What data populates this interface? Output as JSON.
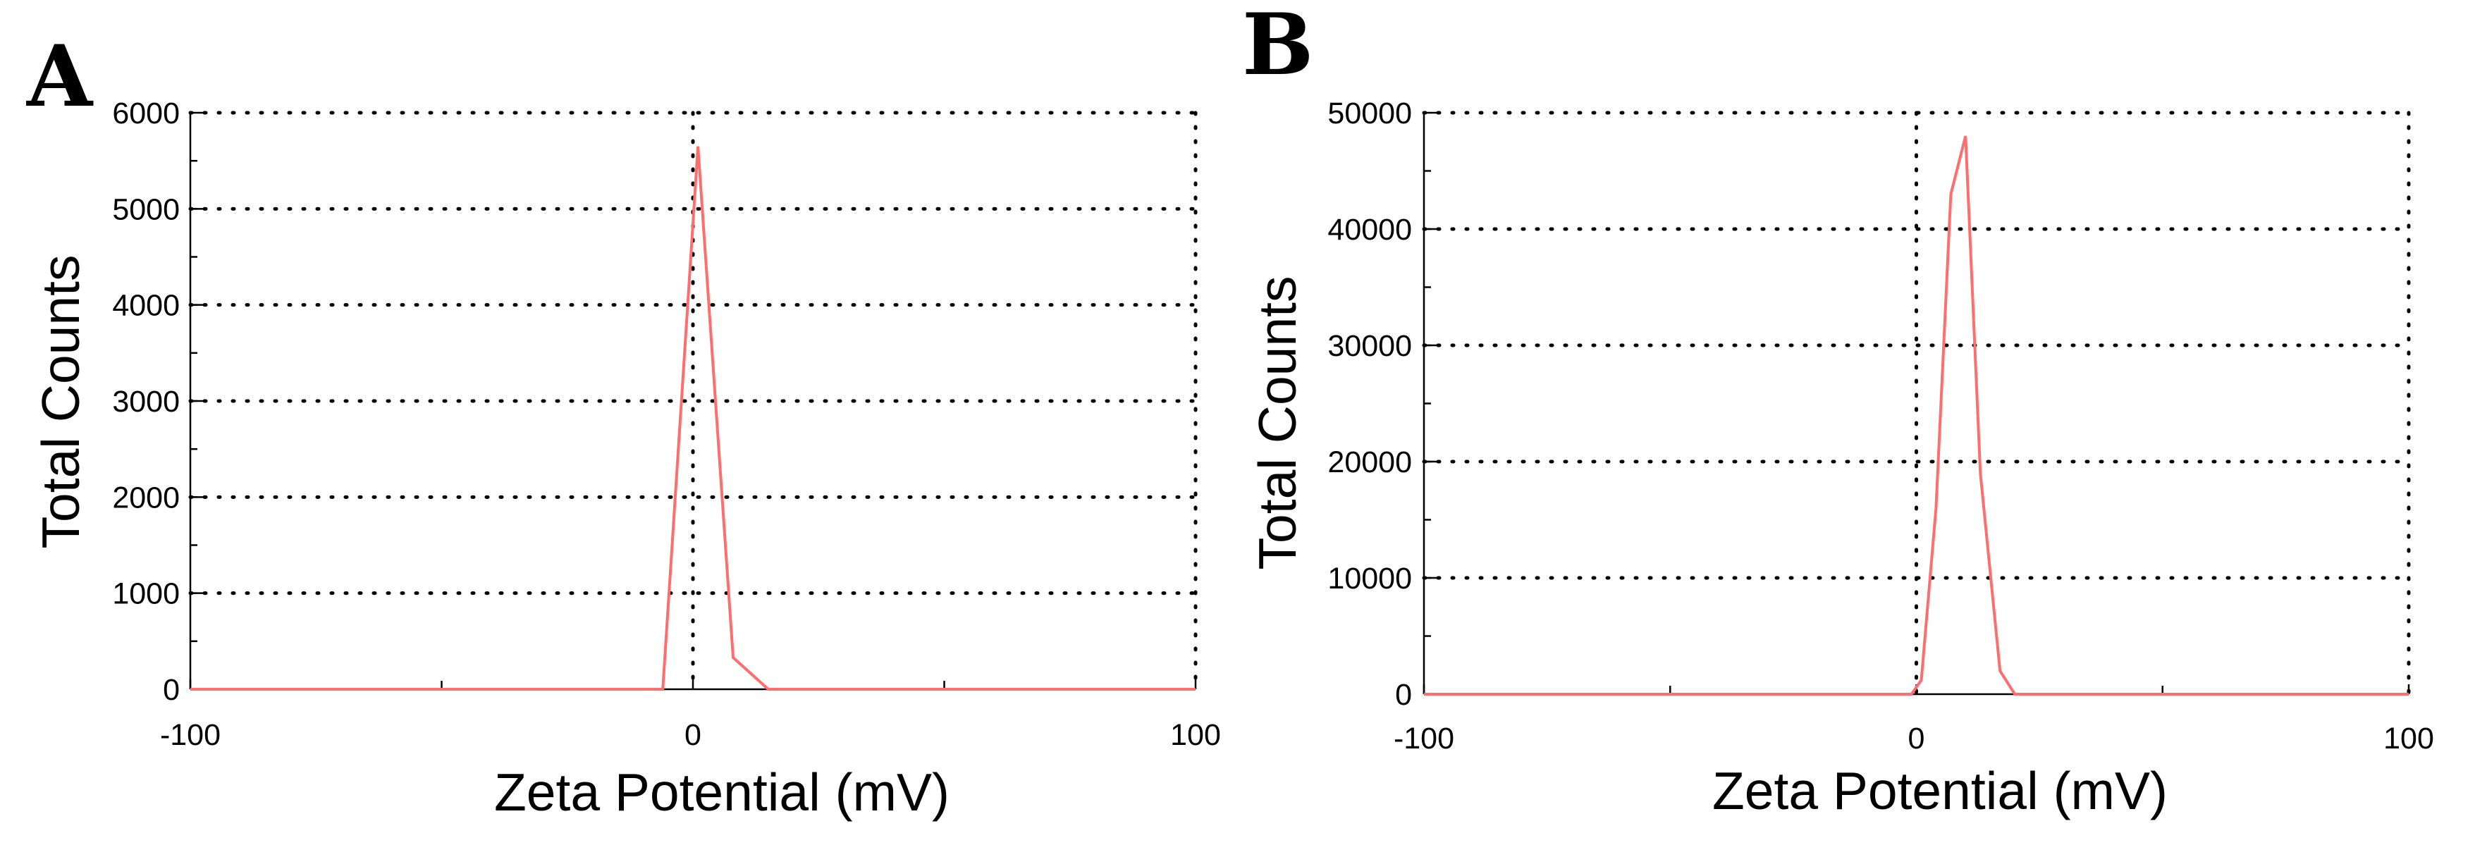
{
  "chart_data": [
    {
      "type": "line",
      "panel_label": "A",
      "title": "",
      "xlabel": "Zeta Potential (mV)",
      "ylabel": "Total Counts",
      "xlim": [
        -100,
        100
      ],
      "ylim": [
        0,
        6000
      ],
      "x_tick_labels": [
        "-100",
        "0",
        "100"
      ],
      "y_tick_labels": [
        "0",
        "1000",
        "2000",
        "3000",
        "4000",
        "5000",
        "6000"
      ],
      "grid": true,
      "series_color": "#ff6e6e",
      "series": [
        {
          "x": [
            -100,
            -6,
            1,
            8,
            15,
            100
          ],
          "y": [
            0,
            0,
            5650,
            330,
            0,
            0
          ]
        }
      ]
    },
    {
      "type": "line",
      "panel_label": "B",
      "title": "",
      "xlabel": "Zeta Potential (mV)",
      "ylabel": "Total Counts",
      "xlim": [
        -100,
        100
      ],
      "ylim": [
        0,
        50000
      ],
      "x_tick_labels": [
        "-100",
        "0",
        "100"
      ],
      "y_tick_labels": [
        "0",
        "10000",
        "20000",
        "30000",
        "40000",
        "50000"
      ],
      "grid": true,
      "series_color": "#ff6e6e",
      "series": [
        {
          "x": [
            -100,
            -1,
            1,
            4,
            7,
            10,
            13,
            17,
            20,
            100
          ],
          "y": [
            0,
            0,
            1200,
            16000,
            43000,
            48000,
            19000,
            2000,
            0,
            0
          ]
        }
      ]
    }
  ]
}
